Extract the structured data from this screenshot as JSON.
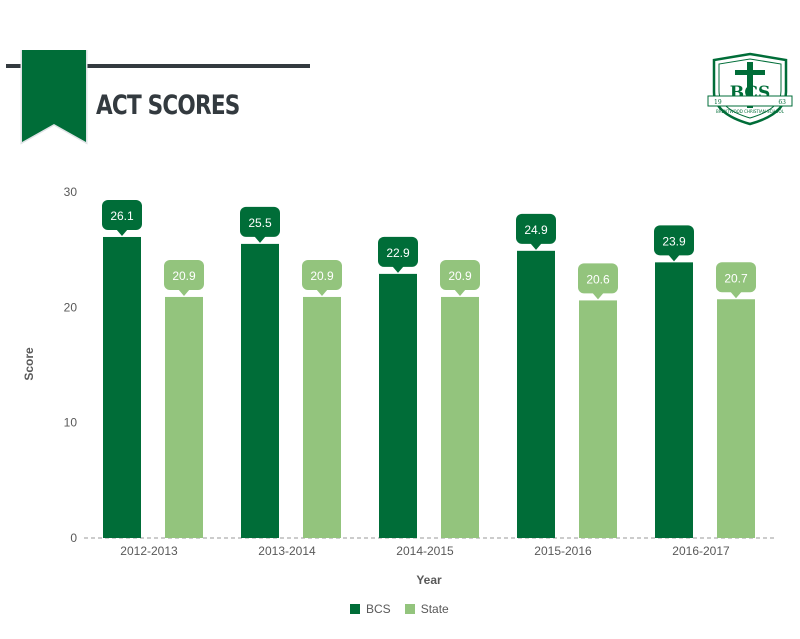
{
  "header": {
    "title": "ACT SCORES",
    "logo_text": "BCS",
    "logo_motto": "BRENTWOOD CHRISTIAN SCHOOL",
    "logo_year_left": "19",
    "logo_year_right": "63"
  },
  "colors": {
    "primary": "#006d38",
    "secondary": "#93c47d",
    "dark": "#333a3f"
  },
  "chart_data": {
    "type": "bar",
    "categories": [
      "2012-2013",
      "2013-2014",
      "2014-2015",
      "2015-2016",
      "2016-2017"
    ],
    "series": [
      {
        "name": "BCS",
        "color": "#006d38",
        "values": [
          26.1,
          25.5,
          22.9,
          24.9,
          23.9
        ]
      },
      {
        "name": "State",
        "color": "#93c47d",
        "values": [
          20.9,
          20.9,
          20.9,
          20.6,
          20.7
        ]
      }
    ],
    "xlabel": "Year",
    "ylabel": "Score",
    "ylim": [
      0,
      30
    ],
    "yticks": [
      0,
      10,
      20,
      30
    ],
    "legend": "bottom-center"
  }
}
